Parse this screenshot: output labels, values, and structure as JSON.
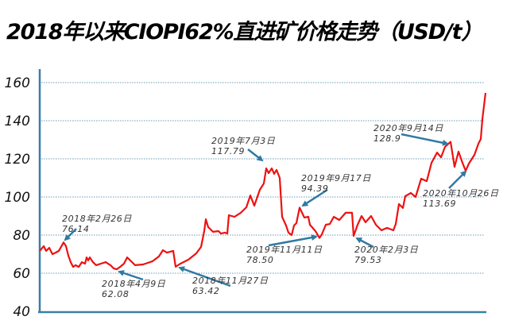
{
  "title": "2018年以来CIOPI62%直进矿价格走势（USD/t）",
  "colors": {
    "line": "#ee1111",
    "axis": "#3b7ea6",
    "grid": "#6b9cb8",
    "arrow": "#2f7aa3"
  },
  "chart_data": {
    "type": "line",
    "title": "2018年以来CIOPI62%直进矿价格走势（USD/t）",
    "xlabel": "",
    "ylabel": "USD/t",
    "ylim": [
      40,
      160
    ],
    "yticks": [
      40,
      60,
      80,
      100,
      120,
      140,
      160
    ],
    "grid": "horizontal dotted",
    "legend": "none",
    "series": [
      {
        "name": "CIOPI 62% 直进矿价格",
        "points": [
          [
            50,
            71.7
          ],
          [
            55,
            74.2
          ],
          [
            58,
            71.7
          ],
          [
            62,
            73.3
          ],
          [
            66,
            70.0
          ],
          [
            70,
            70.8
          ],
          [
            74,
            71.7
          ],
          [
            80,
            76.14
          ],
          [
            83,
            74.2
          ],
          [
            86,
            69.2
          ],
          [
            89,
            65.8
          ],
          [
            92,
            63.3
          ],
          [
            95,
            64.2
          ],
          [
            99,
            63.3
          ],
          [
            103,
            65.8
          ],
          [
            107,
            65.0
          ],
          [
            109,
            68.3
          ],
          [
            111,
            66.7
          ],
          [
            113,
            68.3
          ],
          [
            117,
            65.8
          ],
          [
            121,
            64.2
          ],
          [
            127,
            65.0
          ],
          [
            133,
            65.8
          ],
          [
            139,
            64.2
          ],
          [
            143,
            62.5
          ],
          [
            147,
            62.08
          ],
          [
            151,
            63.3
          ],
          [
            156,
            65.0
          ],
          [
            160,
            68.3
          ],
          [
            165,
            66.3
          ],
          [
            170,
            64.2
          ],
          [
            180,
            64.6
          ],
          [
            192,
            66.3
          ],
          [
            200,
            68.8
          ],
          [
            205,
            72.1
          ],
          [
            210,
            70.8
          ],
          [
            218,
            71.7
          ],
          [
            221,
            63.42
          ],
          [
            227,
            65.0
          ],
          [
            237,
            67.1
          ],
          [
            247,
            70.4
          ],
          [
            253,
            73.8
          ],
          [
            257,
            82.1
          ],
          [
            259,
            88.3
          ],
          [
            262,
            84.2
          ],
          [
            268,
            81.7
          ],
          [
            275,
            82.1
          ],
          [
            278,
            80.8
          ],
          [
            283,
            81.3
          ],
          [
            286,
            80.8
          ],
          [
            288,
            90.4
          ],
          [
            295,
            89.6
          ],
          [
            303,
            91.7
          ],
          [
            310,
            94.6
          ],
          [
            315,
            100.8
          ],
          [
            320,
            95.4
          ],
          [
            327,
            103.8
          ],
          [
            332,
            107.1
          ],
          [
            335,
            115.0
          ],
          [
            338,
            112.5
          ],
          [
            342,
            115.0
          ],
          [
            345,
            112.1
          ],
          [
            348,
            114.2
          ],
          [
            352,
            110.0
          ],
          [
            355,
            89.6
          ],
          [
            360,
            85.0
          ],
          [
            363,
            81.3
          ],
          [
            367,
            80.0
          ],
          [
            370,
            85.0
          ],
          [
            373,
            86.3
          ],
          [
            377,
            94.39
          ],
          [
            383,
            89.2
          ],
          [
            388,
            89.6
          ],
          [
            390,
            85.4
          ],
          [
            397,
            82.1
          ],
          [
            402,
            78.5
          ],
          [
            405,
            80.4
          ],
          [
            410,
            85.4
          ],
          [
            415,
            85.8
          ],
          [
            420,
            89.6
          ],
          [
            427,
            87.9
          ],
          [
            435,
            91.7
          ],
          [
            443,
            91.7
          ],
          [
            445,
            79.53
          ],
          [
            450,
            85.4
          ],
          [
            455,
            90.0
          ],
          [
            460,
            86.7
          ],
          [
            467,
            90.0
          ],
          [
            473,
            85.4
          ],
          [
            480,
            82.5
          ],
          [
            487,
            83.8
          ],
          [
            495,
            82.5
          ],
          [
            498,
            85.8
          ],
          [
            502,
            96.3
          ],
          [
            507,
            94.2
          ],
          [
            510,
            100.4
          ],
          [
            517,
            102.1
          ],
          [
            523,
            100.0
          ],
          [
            530,
            109.6
          ],
          [
            537,
            108.3
          ],
          [
            543,
            117.9
          ],
          [
            550,
            123.3
          ],
          [
            555,
            120.8
          ],
          [
            560,
            126.3
          ],
          [
            567,
            128.9
          ],
          [
            572,
            115.8
          ],
          [
            577,
            123.8
          ],
          [
            582,
            117.9
          ],
          [
            586,
            113.69
          ],
          [
            590,
            117.5
          ],
          [
            597,
            122.1
          ],
          [
            602,
            127.9
          ],
          [
            605,
            130.4
          ],
          [
            607,
            140.8
          ],
          [
            611,
            154.6
          ]
        ]
      }
    ],
    "annotations": [
      {
        "label": "2018年2月26日",
        "value": "76.14"
      },
      {
        "label": "2018年4月9日",
        "value": "62.08"
      },
      {
        "label": "2018年11月27日",
        "value": "63.42"
      },
      {
        "label": "2019年7月3日",
        "value": "117.79"
      },
      {
        "label": "2019年9月17日",
        "value": "94.39"
      },
      {
        "label": "2019年11月11日",
        "value": "78.50"
      },
      {
        "label": "2020年2月3日",
        "value": "79.53"
      },
      {
        "label": "2020年9月14日",
        "value": "128.9"
      },
      {
        "label": "2020年10月26日",
        "value": "113.69"
      }
    ]
  }
}
